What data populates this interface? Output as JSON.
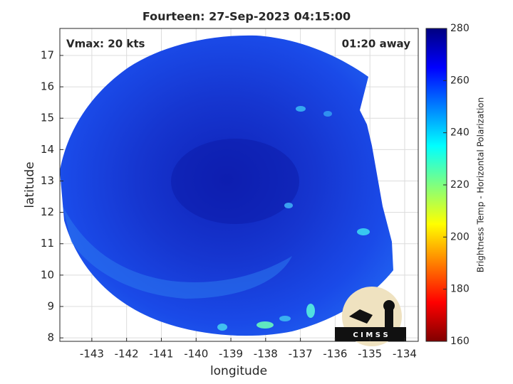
{
  "chart_data": {
    "type": "swath",
    "title": "Fourteen: 27-Sep-2023 04:15:00",
    "annotations": [
      "Vmax: 20 kts",
      "01:20 away"
    ],
    "x_label": "longitude",
    "y_label": "latitude",
    "xlim": [
      -143.92,
      -133.61
    ],
    "xticks": [
      -143,
      -142,
      -141,
      -140,
      -139,
      -138,
      -137,
      -136,
      -135,
      -134
    ],
    "ylim": [
      7.89,
      17.86
    ],
    "yticks": [
      8,
      9,
      10,
      11,
      12,
      13,
      14,
      15,
      16,
      17
    ],
    "grid": true,
    "colorbar": {
      "label": "Brightness Temp - Horizontal Polarization",
      "lim": [
        160,
        280
      ],
      "ticks": [
        160,
        180,
        200,
        220,
        240,
        260,
        280
      ]
    },
    "logo_text": "C I M S S"
  }
}
